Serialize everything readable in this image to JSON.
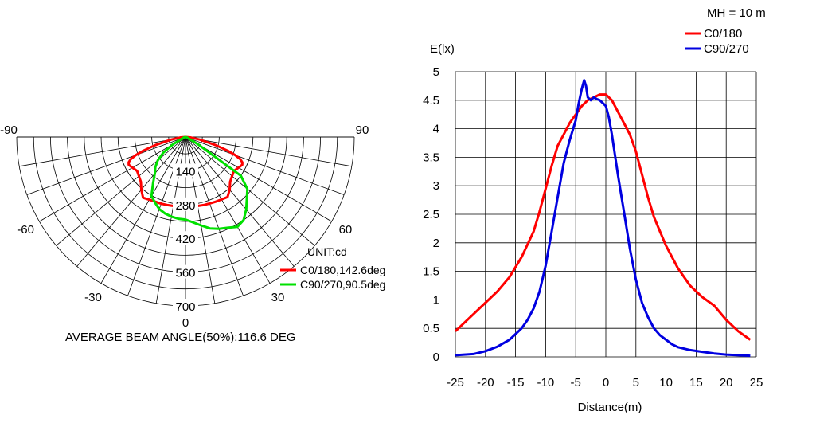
{
  "chart_data": [
    {
      "type": "polar",
      "unit_label": "UNIT:cd",
      "footer": "AVERAGE BEAM ANGLE(50%):116.6 DEG",
      "angle_labels": [
        "-90",
        "-60",
        "-30",
        "0",
        "30",
        "60",
        "90"
      ],
      "angle_ticks": [
        -90,
        -60,
        -30,
        0,
        30,
        60,
        90
      ],
      "radial_labels": [
        "140",
        "280",
        "420",
        "560",
        "700"
      ],
      "radial_ticks": [
        140,
        280,
        420,
        560,
        700
      ],
      "r_max": 700,
      "legend": [
        {
          "label": "C0/180,142.6deg",
          "color": "#ff0000"
        },
        {
          "label": "C90/270,90.5deg",
          "color": "#00e000"
        }
      ],
      "series": [
        {
          "name": "C0/180,142.6deg",
          "color": "#ff0000",
          "angles_deg": [
            -90,
            -85,
            -80,
            -75,
            -72,
            -70,
            -68,
            -66,
            -64,
            -62,
            -60,
            -55,
            -50,
            -45,
            -40,
            -35,
            -30,
            -25,
            -20,
            -15,
            -10,
            -5,
            0,
            5,
            10,
            15,
            20,
            25,
            30,
            35,
            40,
            45,
            50,
            55,
            60,
            62,
            64,
            66,
            68,
            70,
            72,
            75,
            80,
            85,
            90
          ],
          "values_cd": [
            0,
            20,
            60,
            130,
            185,
            220,
            245,
            258,
            262,
            258,
            254,
            245,
            252,
            262,
            285,
            307,
            300,
            296,
            294,
            292,
            290,
            291,
            292,
            291,
            290,
            292,
            293,
            296,
            299,
            304,
            285,
            262,
            252,
            245,
            254,
            258,
            262,
            258,
            245,
            220,
            185,
            130,
            60,
            20,
            0
          ]
        },
        {
          "name": "C90/270,90.5deg",
          "color": "#00e000",
          "angles_deg": [
            -90,
            -80,
            -70,
            -60,
            -55,
            -50,
            -45,
            -40,
            -35,
            -30,
            -25,
            -20,
            -15,
            -10,
            -5,
            0,
            5,
            10,
            15,
            20,
            25,
            30,
            35,
            40,
            45,
            50,
            55,
            60,
            70,
            80,
            90
          ],
          "values_cd": [
            0,
            3,
            8,
            60,
            112,
            150,
            177,
            198,
            235,
            282,
            300,
            318,
            328,
            335,
            340,
            342,
            355,
            372,
            392,
            405,
            415,
            430,
            420,
            392,
            360,
            335,
            280,
            60,
            8,
            3,
            0
          ]
        }
      ]
    },
    {
      "type": "line",
      "header": "MH = 10 m",
      "xlabel": "Distance(m)",
      "ylabel": "E(lx)",
      "xlim": [
        -25,
        25
      ],
      "ylim": [
        0,
        5
      ],
      "x_ticks": [
        -25,
        -20,
        -15,
        -10,
        -5,
        0,
        5,
        10,
        15,
        20,
        25
      ],
      "x_tick_labels": [
        "-25",
        "-20",
        "-15",
        "-10",
        "-5",
        "0",
        "5",
        "10",
        "15",
        "20",
        "25"
      ],
      "y_ticks": [
        0,
        0.5,
        1,
        1.5,
        2,
        2.5,
        3,
        3.5,
        4,
        4.5,
        5
      ],
      "y_tick_labels": [
        "0",
        "0.5",
        "1",
        "1.5",
        "2",
        "2.5",
        "3",
        "3.5",
        "4",
        "4.5",
        "5"
      ],
      "grid": true,
      "legend_position": "top-right",
      "series": [
        {
          "name": "C0/180",
          "color": "#ff0000",
          "x": [
            -25,
            -22,
            -20,
            -18,
            -16,
            -14,
            -12,
            -11,
            -10,
            -9,
            -8,
            -7,
            -6,
            -5,
            -4,
            -3,
            -2,
            -1,
            0,
            1,
            2,
            3,
            4,
            5,
            6,
            7,
            8,
            9,
            10,
            12,
            14,
            16,
            18,
            20,
            22,
            24
          ],
          "y": [
            0.45,
            0.75,
            0.95,
            1.15,
            1.4,
            1.75,
            2.2,
            2.55,
            2.95,
            3.35,
            3.7,
            3.9,
            4.1,
            4.25,
            4.4,
            4.5,
            4.55,
            4.6,
            4.6,
            4.5,
            4.3,
            4.1,
            3.9,
            3.6,
            3.2,
            2.8,
            2.45,
            2.2,
            1.95,
            1.55,
            1.25,
            1.05,
            0.9,
            0.65,
            0.45,
            0.3
          ]
        },
        {
          "name": "C90/270",
          "color": "#0000e0",
          "x": [
            -25,
            -22,
            -20,
            -18,
            -16,
            -14,
            -13,
            -12,
            -11,
            -10,
            -9,
            -8,
            -7,
            -6,
            -5,
            -4.5,
            -4,
            -3.6,
            -3.3,
            -3,
            -2.5,
            -2,
            -1.5,
            -1,
            -0.5,
            0,
            0.5,
            1,
            2,
            3,
            4,
            5,
            6,
            7,
            8,
            9,
            10,
            11,
            12,
            14,
            16,
            18,
            20,
            22,
            24
          ],
          "y": [
            0.03,
            0.05,
            0.1,
            0.18,
            0.3,
            0.5,
            0.65,
            0.85,
            1.15,
            1.6,
            2.2,
            2.8,
            3.4,
            3.8,
            4.15,
            4.45,
            4.7,
            4.85,
            4.75,
            4.55,
            4.5,
            4.55,
            4.52,
            4.5,
            4.45,
            4.4,
            4.2,
            3.9,
            3.2,
            2.55,
            1.9,
            1.35,
            0.95,
            0.7,
            0.5,
            0.38,
            0.3,
            0.22,
            0.17,
            0.12,
            0.09,
            0.06,
            0.04,
            0.03,
            0.02
          ]
        }
      ]
    }
  ]
}
